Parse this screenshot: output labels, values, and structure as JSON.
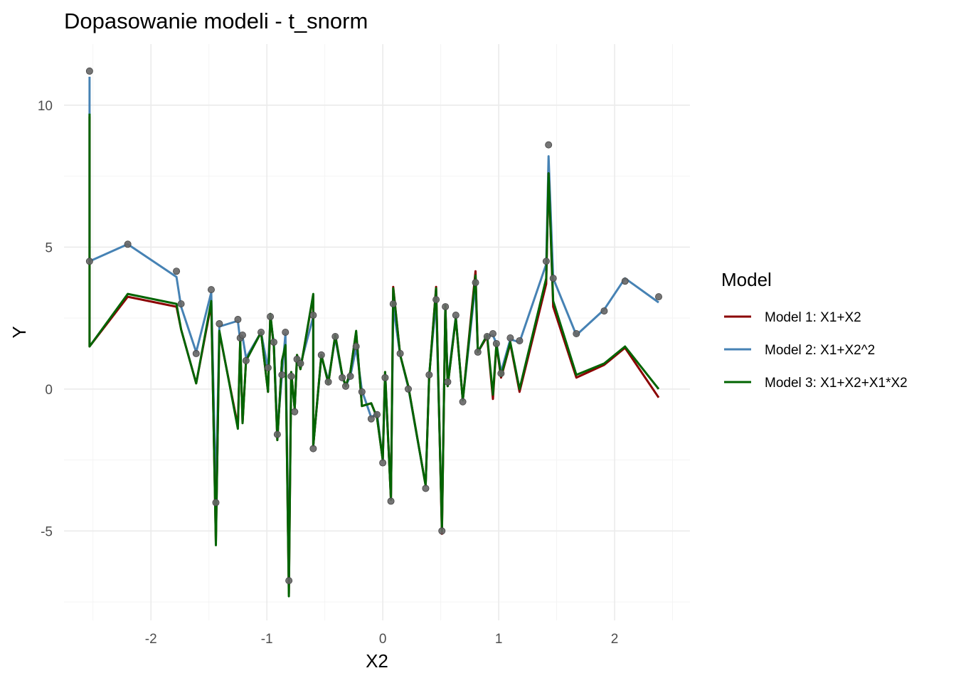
{
  "chart_data": {
    "type": "line",
    "title": "Dopasowanie modeli - t_snorm",
    "xlabel": "X2",
    "ylabel": "Y",
    "xlim": [
      -2.75,
      2.65
    ],
    "ylim": [
      -8.15,
      12.15
    ],
    "x_ticks": [
      -2,
      -1,
      0,
      1,
      2
    ],
    "x_tick_labels": [
      "-2",
      "-1",
      "0",
      "1",
      "2"
    ],
    "y_ticks": [
      -5,
      0,
      5,
      10
    ],
    "y_tick_labels": [
      "-5",
      "0",
      "5",
      "10"
    ],
    "grid": true,
    "legend": {
      "title": "Model",
      "position": "right",
      "entries": [
        {
          "label": "Model 1: X1+X2",
          "color": "#8B0000"
        },
        {
          "label": "Model 2: X1+X2^2",
          "color": "#4682B4"
        },
        {
          "label": "Model 3: X1+X2+X1*X2",
          "color": "#006400"
        }
      ]
    },
    "points": {
      "color": "#666666",
      "x": [
        -2.53,
        -2.53,
        -2.2,
        -1.78,
        -1.74,
        -1.61,
        -1.48,
        -1.44,
        -1.41,
        -1.25,
        -1.23,
        -1.21,
        -1.18,
        -1.05,
        -0.99,
        -0.97,
        -0.94,
        -0.91,
        -0.87,
        -0.84,
        -0.81,
        -0.79,
        -0.76,
        -0.74,
        -0.71,
        -0.6,
        -0.6,
        -0.53,
        -0.47,
        -0.41,
        -0.35,
        -0.32,
        -0.28,
        -0.23,
        -0.18,
        -0.1,
        -0.05,
        0,
        0.02,
        0.07,
        0.09,
        0.15,
        0.22,
        0.37,
        0.4,
        0.46,
        0.51,
        0.54,
        0.56,
        0.63,
        0.69,
        0.8,
        0.82,
        0.9,
        0.95,
        0.98,
        1.02,
        1.1,
        1.18,
        1.41,
        1.43,
        1.47,
        1.67,
        1.91,
        2.09,
        2.38
      ],
      "y": [
        11.2,
        4.5,
        5.1,
        4.15,
        3.0,
        1.25,
        3.5,
        -4.0,
        2.3,
        2.45,
        1.8,
        1.9,
        1.0,
        2.0,
        0.75,
        2.55,
        1.65,
        -1.6,
        0.5,
        2.0,
        -6.75,
        0.45,
        -0.8,
        1.05,
        0.9,
        2.6,
        -2.1,
        1.2,
        0.25,
        1.85,
        0.4,
        0.1,
        0.45,
        1.5,
        -0.1,
        -1.05,
        -0.9,
        -2.6,
        0.4,
        -3.95,
        3.0,
        1.25,
        0.0,
        -3.5,
        0.5,
        3.15,
        -5.0,
        2.9,
        0.25,
        2.6,
        -0.45,
        3.75,
        1.3,
        1.85,
        1.95,
        1.6,
        0.55,
        1.8,
        1.7,
        4.5,
        8.6,
        3.9,
        1.95,
        2.75,
        3.8,
        3.25
      ]
    },
    "series": [
      {
        "name": "Model 2: X1+X2^2",
        "color": "#4682B4",
        "x": [
          -2.53,
          -2.53,
          -2.53,
          -2.2,
          -1.78,
          -1.74,
          -1.61,
          -1.48,
          -1.44,
          -1.41,
          -1.25,
          -1.23,
          -1.21,
          -1.18,
          -1.05,
          -0.99,
          -0.97,
          -0.94,
          -0.91,
          -0.87,
          -0.84,
          -0.81,
          -0.79,
          -0.76,
          -0.74,
          -0.71,
          -0.6,
          -0.6,
          -0.53,
          -0.47,
          -0.41,
          -0.35,
          -0.32,
          -0.28,
          -0.23,
          -0.18,
          -0.1,
          -0.05,
          0,
          0.02,
          0.07,
          0.09,
          0.15,
          0.22,
          0.37,
          0.4,
          0.46,
          0.51,
          0.54,
          0.56,
          0.63,
          0.69,
          0.8,
          0.82,
          0.9,
          0.95,
          0.98,
          1.02,
          1.1,
          1.18,
          1.41,
          1.43,
          1.47,
          1.67,
          1.91,
          2.09,
          2.38
        ],
        "y": [
          11.0,
          5.5,
          4.5,
          5.1,
          3.95,
          2.9,
          1.3,
          3.4,
          -3.8,
          2.2,
          2.4,
          1.7,
          1.85,
          1.1,
          2.0,
          0.7,
          2.5,
          1.6,
          -1.5,
          0.5,
          1.95,
          -6.5,
          0.5,
          -0.7,
          1.1,
          0.85,
          2.55,
          -2.0,
          1.15,
          0.3,
          1.8,
          0.45,
          0.1,
          0.45,
          1.45,
          -0.05,
          -1.0,
          -0.85,
          -2.5,
          0.4,
          -3.8,
          2.9,
          1.2,
          0.05,
          -3.4,
          0.5,
          3.1,
          -4.8,
          2.85,
          0.25,
          2.55,
          -0.4,
          3.7,
          1.3,
          1.85,
          1.9,
          1.6,
          0.6,
          1.75,
          1.65,
          4.4,
          8.2,
          3.9,
          1.9,
          2.8,
          3.9,
          3.05
        ]
      },
      {
        "name": "Model 1: X1+X2",
        "color": "#8B0000",
        "x": [
          -2.53,
          -2.53,
          -2.53,
          -2.2,
          -1.78,
          -1.74,
          -1.61,
          -1.48,
          -1.44,
          -1.41,
          -1.25,
          -1.23,
          -1.21,
          -1.18,
          -1.05,
          -0.99,
          -0.97,
          -0.94,
          -0.91,
          -0.87,
          -0.84,
          -0.81,
          -0.79,
          -0.76,
          -0.74,
          -0.71,
          -0.6,
          -0.6,
          -0.53,
          -0.47,
          -0.41,
          -0.35,
          -0.32,
          -0.28,
          -0.23,
          -0.18,
          -0.1,
          -0.05,
          0,
          0.02,
          0.07,
          0.09,
          0.15,
          0.22,
          0.37,
          0.4,
          0.46,
          0.51,
          0.54,
          0.56,
          0.63,
          0.69,
          0.8,
          0.82,
          0.9,
          0.95,
          0.98,
          1.02,
          1.1,
          1.18,
          1.41,
          1.43,
          1.47,
          1.67,
          1.91,
          2.09,
          2.38
        ],
        "y": [
          9.6,
          5.3,
          1.5,
          3.25,
          2.9,
          2.1,
          0.2,
          3.0,
          -5.4,
          2.0,
          -1.3,
          1.7,
          -1.2,
          1.0,
          2.0,
          -0.1,
          2.6,
          1.5,
          -1.8,
          1.0,
          1.5,
          -7.2,
          0.6,
          -0.7,
          1.2,
          0.7,
          3.3,
          -2.0,
          1.2,
          0.2,
          1.9,
          0.5,
          0.1,
          0.6,
          2.0,
          -0.6,
          -0.5,
          -1.0,
          -2.5,
          0.6,
          -3.9,
          3.6,
          1.2,
          0.1,
          -3.4,
          0.4,
          3.6,
          -5.1,
          2.95,
          0.1,
          2.5,
          -0.4,
          4.15,
          1.3,
          1.85,
          -0.35,
          1.55,
          0.4,
          1.6,
          -0.1,
          3.7,
          7.6,
          2.9,
          0.4,
          0.85,
          1.45,
          -0.3
        ]
      },
      {
        "name": "Model 3: X1+X2+X1*X2",
        "color": "#006400",
        "x": [
          -2.53,
          -2.53,
          -2.53,
          -2.2,
          -1.78,
          -1.74,
          -1.61,
          -1.48,
          -1.44,
          -1.41,
          -1.25,
          -1.23,
          -1.21,
          -1.18,
          -1.05,
          -0.99,
          -0.97,
          -0.94,
          -0.91,
          -0.87,
          -0.84,
          -0.81,
          -0.79,
          -0.76,
          -0.74,
          -0.71,
          -0.6,
          -0.6,
          -0.53,
          -0.47,
          -0.41,
          -0.35,
          -0.32,
          -0.28,
          -0.23,
          -0.18,
          -0.1,
          -0.05,
          0,
          0.02,
          0.07,
          0.09,
          0.15,
          0.22,
          0.37,
          0.4,
          0.46,
          0.51,
          0.54,
          0.56,
          0.63,
          0.69,
          0.8,
          0.82,
          0.9,
          0.95,
          0.98,
          1.02,
          1.1,
          1.18,
          1.41,
          1.43,
          1.47,
          1.67,
          1.91,
          2.09,
          2.38
        ],
        "y": [
          9.7,
          7.8,
          1.5,
          3.35,
          3.0,
          2.1,
          0.2,
          3.1,
          -5.5,
          2.05,
          -1.4,
          1.75,
          -1.2,
          1.0,
          2.0,
          -0.1,
          2.65,
          1.5,
          -1.8,
          1.0,
          1.55,
          -7.3,
          0.6,
          -0.7,
          1.2,
          0.7,
          3.35,
          -2.0,
          1.2,
          0.2,
          1.9,
          0.5,
          0.1,
          0.6,
          2.05,
          -0.6,
          -0.5,
          -1.0,
          -2.5,
          0.6,
          -3.9,
          3.55,
          1.2,
          0.1,
          -3.4,
          0.4,
          3.55,
          -5.0,
          2.95,
          0.1,
          2.5,
          -0.4,
          4.0,
          1.3,
          1.9,
          -0.2,
          1.6,
          0.45,
          1.65,
          0.0,
          3.9,
          7.6,
          3.1,
          0.5,
          0.9,
          1.5,
          0.0
        ]
      }
    ]
  }
}
